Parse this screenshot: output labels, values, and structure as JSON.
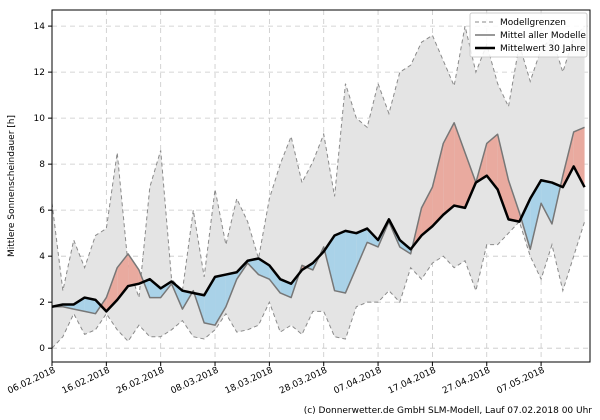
{
  "chart_data": {
    "type": "line",
    "ylabel": "Mittlere Sonnenscheindauer [h]",
    "footer": "(c) Donnerwetter.de GmbH SLM-Modell, Lauf 07.02.2018 00 Uhr",
    "x": [
      "06.02.2018",
      "08.02.2018",
      "10.02.2018",
      "12.02.2018",
      "14.02.2018",
      "16.02.2018",
      "18.02.2018",
      "20.02.2018",
      "22.02.2018",
      "24.02.2018",
      "26.02.2018",
      "28.02.2018",
      "02.03.2018",
      "04.03.2018",
      "06.03.2018",
      "08.03.2018",
      "10.03.2018",
      "12.03.2018",
      "14.03.2018",
      "16.03.2018",
      "18.03.2018",
      "20.03.2018",
      "22.03.2018",
      "24.03.2018",
      "26.03.2018",
      "28.03.2018",
      "30.03.2018",
      "01.04.2018",
      "03.04.2018",
      "05.04.2018",
      "07.04.2018",
      "09.04.2018",
      "11.04.2018",
      "13.04.2018",
      "15.04.2018",
      "17.04.2018",
      "19.04.2018",
      "21.04.2018",
      "23.04.2018",
      "25.04.2018",
      "27.04.2018",
      "29.04.2018",
      "01.05.2018",
      "03.05.2018",
      "05.05.2018",
      "07.05.2018",
      "09.05.2018",
      "11.05.2018",
      "13.05.2018",
      "15.05.2018"
    ],
    "xlim": [
      "06.02.2018",
      "16.05.2018"
    ],
    "xticks": [
      "06.02.2018",
      "16.02.2018",
      "26.02.2018",
      "08.03.2018",
      "18.03.2018",
      "28.03.2018",
      "07.04.2018",
      "17.04.2018",
      "27.04.2018",
      "07.05.2018"
    ],
    "ylim": [
      -0.6,
      14.7
    ],
    "yticks": [
      0,
      2,
      4,
      6,
      8,
      10,
      12,
      14
    ],
    "grid": true,
    "legend": "upper right",
    "above_color": "#e9aa9f",
    "below_color": "#a9d2e8",
    "band": {
      "name": "Modellgrenzen",
      "color": "#8a8a8a",
      "fill": "#e4e4e4",
      "upper": [
        6.3,
        2.5,
        4.7,
        3.5,
        4.9,
        5.2,
        8.5,
        3.6,
        2.2,
        7.0,
        8.6,
        3.0,
        2.5,
        6.0,
        3.1,
        6.9,
        4.5,
        6.5,
        5.5,
        3.9,
        6.5,
        8.0,
        9.2,
        7.2,
        8.1,
        9.3,
        6.6,
        11.5,
        10.0,
        9.6,
        11.5,
        10.2,
        12.0,
        12.3,
        13.3,
        13.6,
        12.5,
        11.4,
        14.0,
        12.0,
        13.2,
        11.5,
        10.5,
        13.2,
        11.6,
        13.0,
        13.5,
        12.0,
        13.5,
        14.0
      ],
      "lower": [
        0,
        0.5,
        1.5,
        0.6,
        0.8,
        1.5,
        0.8,
        0.3,
        1,
        0.5,
        0.5,
        0.8,
        1.2,
        0.5,
        0.4,
        0.8,
        1.5,
        0.7,
        0.8,
        1,
        2.0,
        0.7,
        1,
        0.6,
        1.6,
        1.6,
        0.5,
        0.4,
        1.8,
        2,
        2,
        2.5,
        2.0,
        3.5,
        3,
        3.7,
        4.0,
        3.5,
        3.8,
        2.5,
        4.5,
        4.5,
        5,
        5.5,
        4.0,
        3,
        4.5,
        2.5,
        4.0,
        5.5
      ]
    },
    "series": [
      {
        "name": "Mittel aller Modelle",
        "color": "#777777",
        "values": [
          1.8,
          1.8,
          1.7,
          1.6,
          1.5,
          2.2,
          3.5,
          4.1,
          3.4,
          2.2,
          2.2,
          2.8,
          1.7,
          2.5,
          1.1,
          1.0,
          1.8,
          3.0,
          3.7,
          3.2,
          3.0,
          2.4,
          2.2,
          3.6,
          3.4,
          4.4,
          2.5,
          2.4,
          3.5,
          4.6,
          4.4,
          5.5,
          4.4,
          4.1,
          6.1,
          7.0,
          8.9,
          9.8,
          8.5,
          7.2,
          8.9,
          9.3,
          7.3,
          5.9,
          4.3,
          6.3,
          5.4,
          7.5,
          9.4,
          9.6
        ]
      },
      {
        "name": "Mittelwert 30 Jahre",
        "color": "#000000",
        "values": [
          1.8,
          1.9,
          1.9,
          2.2,
          2.1,
          1.6,
          2.1,
          2.7,
          2.8,
          3.0,
          2.6,
          2.9,
          2.5,
          2.4,
          2.3,
          3.1,
          3.2,
          3.3,
          3.8,
          3.9,
          3.6,
          3.0,
          2.8,
          3.4,
          3.7,
          4.2,
          4.9,
          5.1,
          5.0,
          5.2,
          4.7,
          5.6,
          4.7,
          4.3,
          4.9,
          5.3,
          5.8,
          6.2,
          6.1,
          7.2,
          7.5,
          6.9,
          5.6,
          5.5,
          6.5,
          7.3,
          7.2,
          7.0,
          7.9,
          7.0
        ]
      }
    ]
  }
}
